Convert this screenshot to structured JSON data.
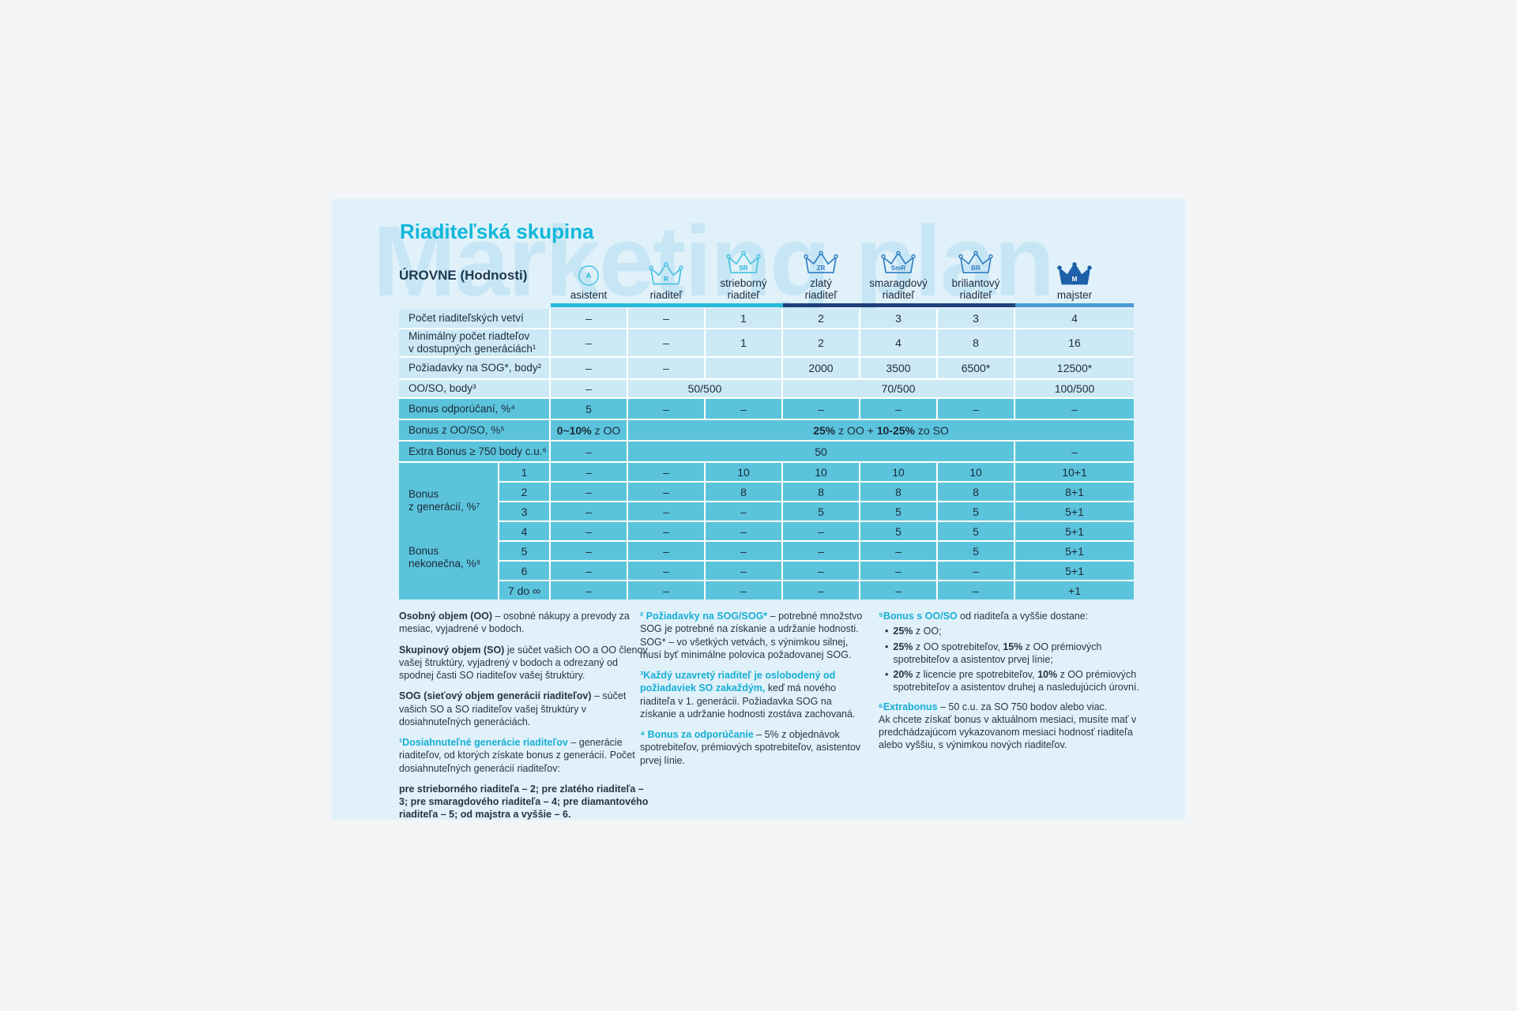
{
  "watermark": "Marketing plan",
  "card": {
    "title": "Riaditeľská skupina",
    "levels_label": "ÚROVNE (Hodnosti)"
  },
  "accent_colors": {
    "cyan": "#29b9d9",
    "navy": "#20407a",
    "blue": "#4a9bd4",
    "teal_row": "#5bc4dc",
    "light_row": "#cde9f6"
  },
  "columns": [
    {
      "name": "asistent",
      "abbr": "A",
      "icon": "circle-badge",
      "tier": "cyan"
    },
    {
      "name": "riaditeľ",
      "abbr": "R",
      "icon": "crown",
      "tier": "cyan"
    },
    {
      "name": "strieborný\nriaditeľ",
      "abbr": "SR",
      "icon": "crown",
      "tier": "cyan"
    },
    {
      "name": "zlatý\nriaditeľ",
      "abbr": "ZR",
      "icon": "crown",
      "tier": "blue"
    },
    {
      "name": "smaragdový\nriaditeľ",
      "abbr": "SmR",
      "icon": "crown",
      "tier": "blue"
    },
    {
      "name": "briliantový\nriaditeľ",
      "abbr": "BR",
      "icon": "crown",
      "tier": "blue"
    },
    {
      "name": "majster",
      "abbr": "M",
      "icon": "crown-filled",
      "tier": "navy"
    }
  ],
  "table": {
    "rows_light": [
      {
        "label": "Počet riaditeľských vetví",
        "values": [
          "–",
          "–",
          "1",
          "2",
          "3",
          "3",
          "4"
        ]
      },
      {
        "label": "Minimálny počet riadteľov\nv dostupných generáciách¹",
        "values": [
          "–",
          "–",
          "1",
          "2",
          "4",
          "8",
          "16"
        ]
      },
      {
        "label": "Požiadavky na SOG*, body²",
        "values": [
          "–",
          "–",
          "",
          "2000",
          "3500",
          "6500*",
          "12500*"
        ]
      },
      {
        "label": "OO/SO, body³",
        "cells": [
          "–",
          "50/500",
          "70/500",
          "100/500"
        ]
      }
    ],
    "rows_dark": [
      {
        "label": "Bonus odporúčaní, %⁴",
        "values": [
          "5",
          "–",
          "–",
          "–",
          "–",
          "–",
          "–"
        ]
      },
      {
        "label": "Bonus z OO/SO, %⁵",
        "cell1": [
          {
            "t": "0~10%",
            "b": 1
          },
          {
            "t": " z OO"
          }
        ],
        "cell2": [
          {
            "t": "25%",
            "b": 1
          },
          {
            "t": " z OO + "
          },
          {
            "t": "10-25%",
            "b": 1
          },
          {
            "t": " zo SO"
          }
        ]
      },
      {
        "label": "Extra Bonus ≥ 750 body c.u.⁶",
        "cells": [
          "–",
          "50",
          "–"
        ]
      }
    ],
    "gen": {
      "label1": "Bonus\nz generácií, %⁷",
      "label2": "Bonus\nnekonečna, %⁸",
      "rows": [
        {
          "g": "1",
          "v": [
            "–",
            "–",
            "10",
            "10",
            "10",
            "10",
            "10+1"
          ]
        },
        {
          "g": "2",
          "v": [
            "–",
            "–",
            "8",
            "8",
            "8",
            "8",
            "8+1"
          ]
        },
        {
          "g": "3",
          "v": [
            "–",
            "–",
            "–",
            "5",
            "5",
            "5",
            "5+1"
          ]
        },
        {
          "g": "4",
          "v": [
            "–",
            "–",
            "–",
            "–",
            "5",
            "5",
            "5+1"
          ]
        },
        {
          "g": "5",
          "v": [
            "–",
            "–",
            "–",
            "–",
            "–",
            "5",
            "5+1"
          ]
        },
        {
          "g": "6",
          "v": [
            "–",
            "–",
            "–",
            "–",
            "–",
            "–",
            "5+1"
          ]
        },
        {
          "g": "7 do ∞",
          "v": [
            "–",
            "–",
            "–",
            "–",
            "–",
            "–",
            "+1"
          ]
        }
      ]
    }
  },
  "footnotes": {
    "col1": {
      "p1": [
        {
          "t": "Osobný objem (OO)",
          "b": 1
        },
        {
          "t": " – osobné nákupy a prevody za mesiac, vyjadrené v bodoch."
        }
      ],
      "p2": [
        {
          "t": "Skupinový objem (SO)",
          "b": 1
        },
        {
          "t": " je súčet vašich OO a OO členov vašej štruktúry, vyjadrený v bodoch a odrezaný od spodnej časti SO riaditeľov vašej štruktúry."
        }
      ],
      "p3": [
        {
          "t": "SOG (sieťový objem generácií riaditeľov)",
          "b": 1
        },
        {
          "t": " – súčet vašich SO a SO riaditeľov vašej štruktúry v dosiahnuteľných generáciách."
        }
      ],
      "p4": [
        {
          "t": "¹Dosiahnuteľné generácie riaditeľov",
          "c": 1
        },
        {
          "t": " – generácie riaditeľov, od ktorých získate bonus z generácií. Počet dosiahnuteľných generácií riaditeľov:"
        }
      ],
      "p5": [
        {
          "t": "pre strieborného riaditeľa – 2; pre zlatého riaditeľa – 3; pre smaragdového riaditeľa – 4; pre diamantového riaditeľa – 5; od majstra a vyššie – 6.",
          "b": 1
        }
      ]
    },
    "col2": {
      "p1": [
        {
          "t": "² Požiadavky na SOG/SOG*",
          "c": 1
        },
        {
          "t": " – potrebné množstvo SOG je potrebné na získanie a udržanie hodnosti. SOG* – vo všetkých vetvách, s výnimkou silnej, musí byť minimálne polovica požadovanej SOG."
        }
      ],
      "p2": [
        {
          "t": "³Každý uzavretý riaditeľ je oslobodený od požiadaviek SO zakaždým,",
          "c": 1
        },
        {
          "t": " keď má nového riaditeľa v 1. generácii. Požiadavka SOG na získanie a udržanie hodnosti zostáva zachovaná."
        }
      ],
      "p3": [
        {
          "t": "⁴ Bonus za odporúčanie",
          "c": 1
        },
        {
          "t": " – 5% z objednávok spotrebiteľov, prémiových spotrebiteľov, asistentov prvej línie."
        }
      ]
    },
    "col3": {
      "p1": [
        {
          "t": "⁵Bonus s OO/SO",
          "c": 1
        },
        {
          "t": " od riaditeľa a vyššie dostane:"
        }
      ],
      "bullet_char": "•",
      "b1": [
        {
          "t": "25%",
          "b": 1
        },
        {
          "t": " z OO;"
        }
      ],
      "b2": [
        {
          "t": "25%",
          "b": 1
        },
        {
          "t": " z OO spotrebiteľov, "
        },
        {
          "t": "15%",
          "b": 1
        },
        {
          "t": " z OO prémiových spotrebiteľov a asistentov prvej línie;"
        }
      ],
      "b3": [
        {
          "t": "20%",
          "b": 1
        },
        {
          "t": " z licencie pre spotrebiteľov, "
        },
        {
          "t": "10%",
          "b": 1
        },
        {
          "t": " z OO prémiových spotrebiteľov a asistentov druhej a nasledujúcich úrovní."
        }
      ],
      "p2": [
        {
          "t": "⁶Extrabonus",
          "c": 1
        },
        {
          "t": " – 50 c.u. za SO 750 bodov alebo viac.\nAk chcete získať bonus v aktuálnom mesiaci, musíte mať v predchádzajúcom vykazovanom mesiaci hodnosť riaditeľa alebo vyššiu, s výnimkou nových riaditeľov."
        }
      ]
    }
  }
}
